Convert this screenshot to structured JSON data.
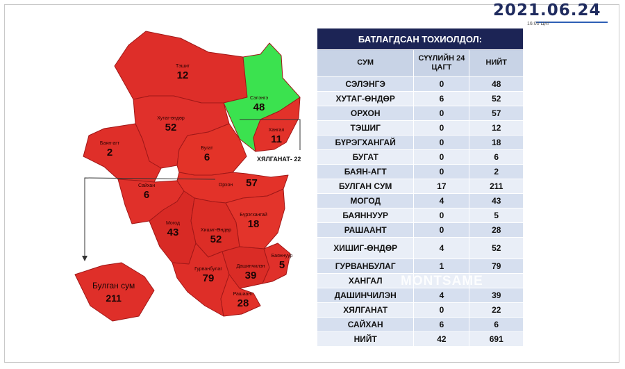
{
  "header": {
    "date": "2021.06.24",
    "time": "16:00 ЦАГ"
  },
  "colors": {
    "red": "#e0302a",
    "green": "#37e04e",
    "navy": "#1c2455"
  },
  "map": {
    "regions": [
      {
        "name": "Тэшиг",
        "value": "12"
      },
      {
        "name": "Сэлэнгэ",
        "value": "48"
      },
      {
        "name": "Хутаг-өндөр",
        "value": "52"
      },
      {
        "name": "Баян-агт",
        "value": "2"
      },
      {
        "name": "Бугат",
        "value": "6"
      },
      {
        "name": "Хангал",
        "value": "11"
      },
      {
        "name": "Сайхан",
        "value": "6"
      },
      {
        "name": "Орхон",
        "value": "57"
      },
      {
        "name": "Могод",
        "value": "43"
      },
      {
        "name": "Хишиг-Өндөр",
        "value": "52"
      },
      {
        "name": "Бүрэгхангай",
        "value": "18"
      },
      {
        "name": "Гурванбулаг",
        "value": "79"
      },
      {
        "name": "Дашинчилэн",
        "value": "39"
      },
      {
        "name": "Баяннуур",
        "value": "5"
      },
      {
        "name": "Рашаант",
        "value": "28"
      }
    ],
    "hyalganat_label": "ХЯЛГАНАТ- 22",
    "bulgan": {
      "name": "Булган сум",
      "value": "211"
    }
  },
  "table": {
    "title": "БАТЛАГДСАН ТОХИОЛДОЛ:",
    "headers": [
      "СУМ",
      "СҮҮЛИЙН 24 ЦАГТ",
      "НИЙТ"
    ],
    "rows": [
      [
        "СЭЛЭНГЭ",
        "0",
        "48"
      ],
      [
        "ХУТАГ-ӨНДӨР",
        "6",
        "52"
      ],
      [
        "ОРХОН",
        "0",
        "57"
      ],
      [
        "ТЭШИГ",
        "0",
        "12"
      ],
      [
        "БҮРЭГХАНГАЙ",
        "0",
        "18"
      ],
      [
        "БУГАТ",
        "0",
        "6"
      ],
      [
        "БАЯН-АГТ",
        "0",
        "2"
      ],
      [
        "БУЛГАН СУМ",
        "17",
        "211"
      ],
      [
        "МОГОД",
        "4",
        "43"
      ],
      [
        "БАЯННУУР",
        "0",
        "5"
      ],
      [
        "РАШААНТ",
        "0",
        "28"
      ],
      [
        "ХИШИГ-ӨНДӨР",
        "4",
        "52"
      ],
      [
        "ГУРВАНБУЛАГ",
        "1",
        "79"
      ],
      [
        "ХАНГАЛ",
        "",
        ""
      ],
      [
        "ДАШИНЧИЛЭН",
        "4",
        "39"
      ],
      [
        "ХЯЛГАНАТ",
        "0",
        "22"
      ],
      [
        "САЙХАН",
        "6",
        "6"
      ],
      [
        "НИЙТ",
        "42",
        "691"
      ]
    ]
  },
  "watermark": "MONTSAME"
}
